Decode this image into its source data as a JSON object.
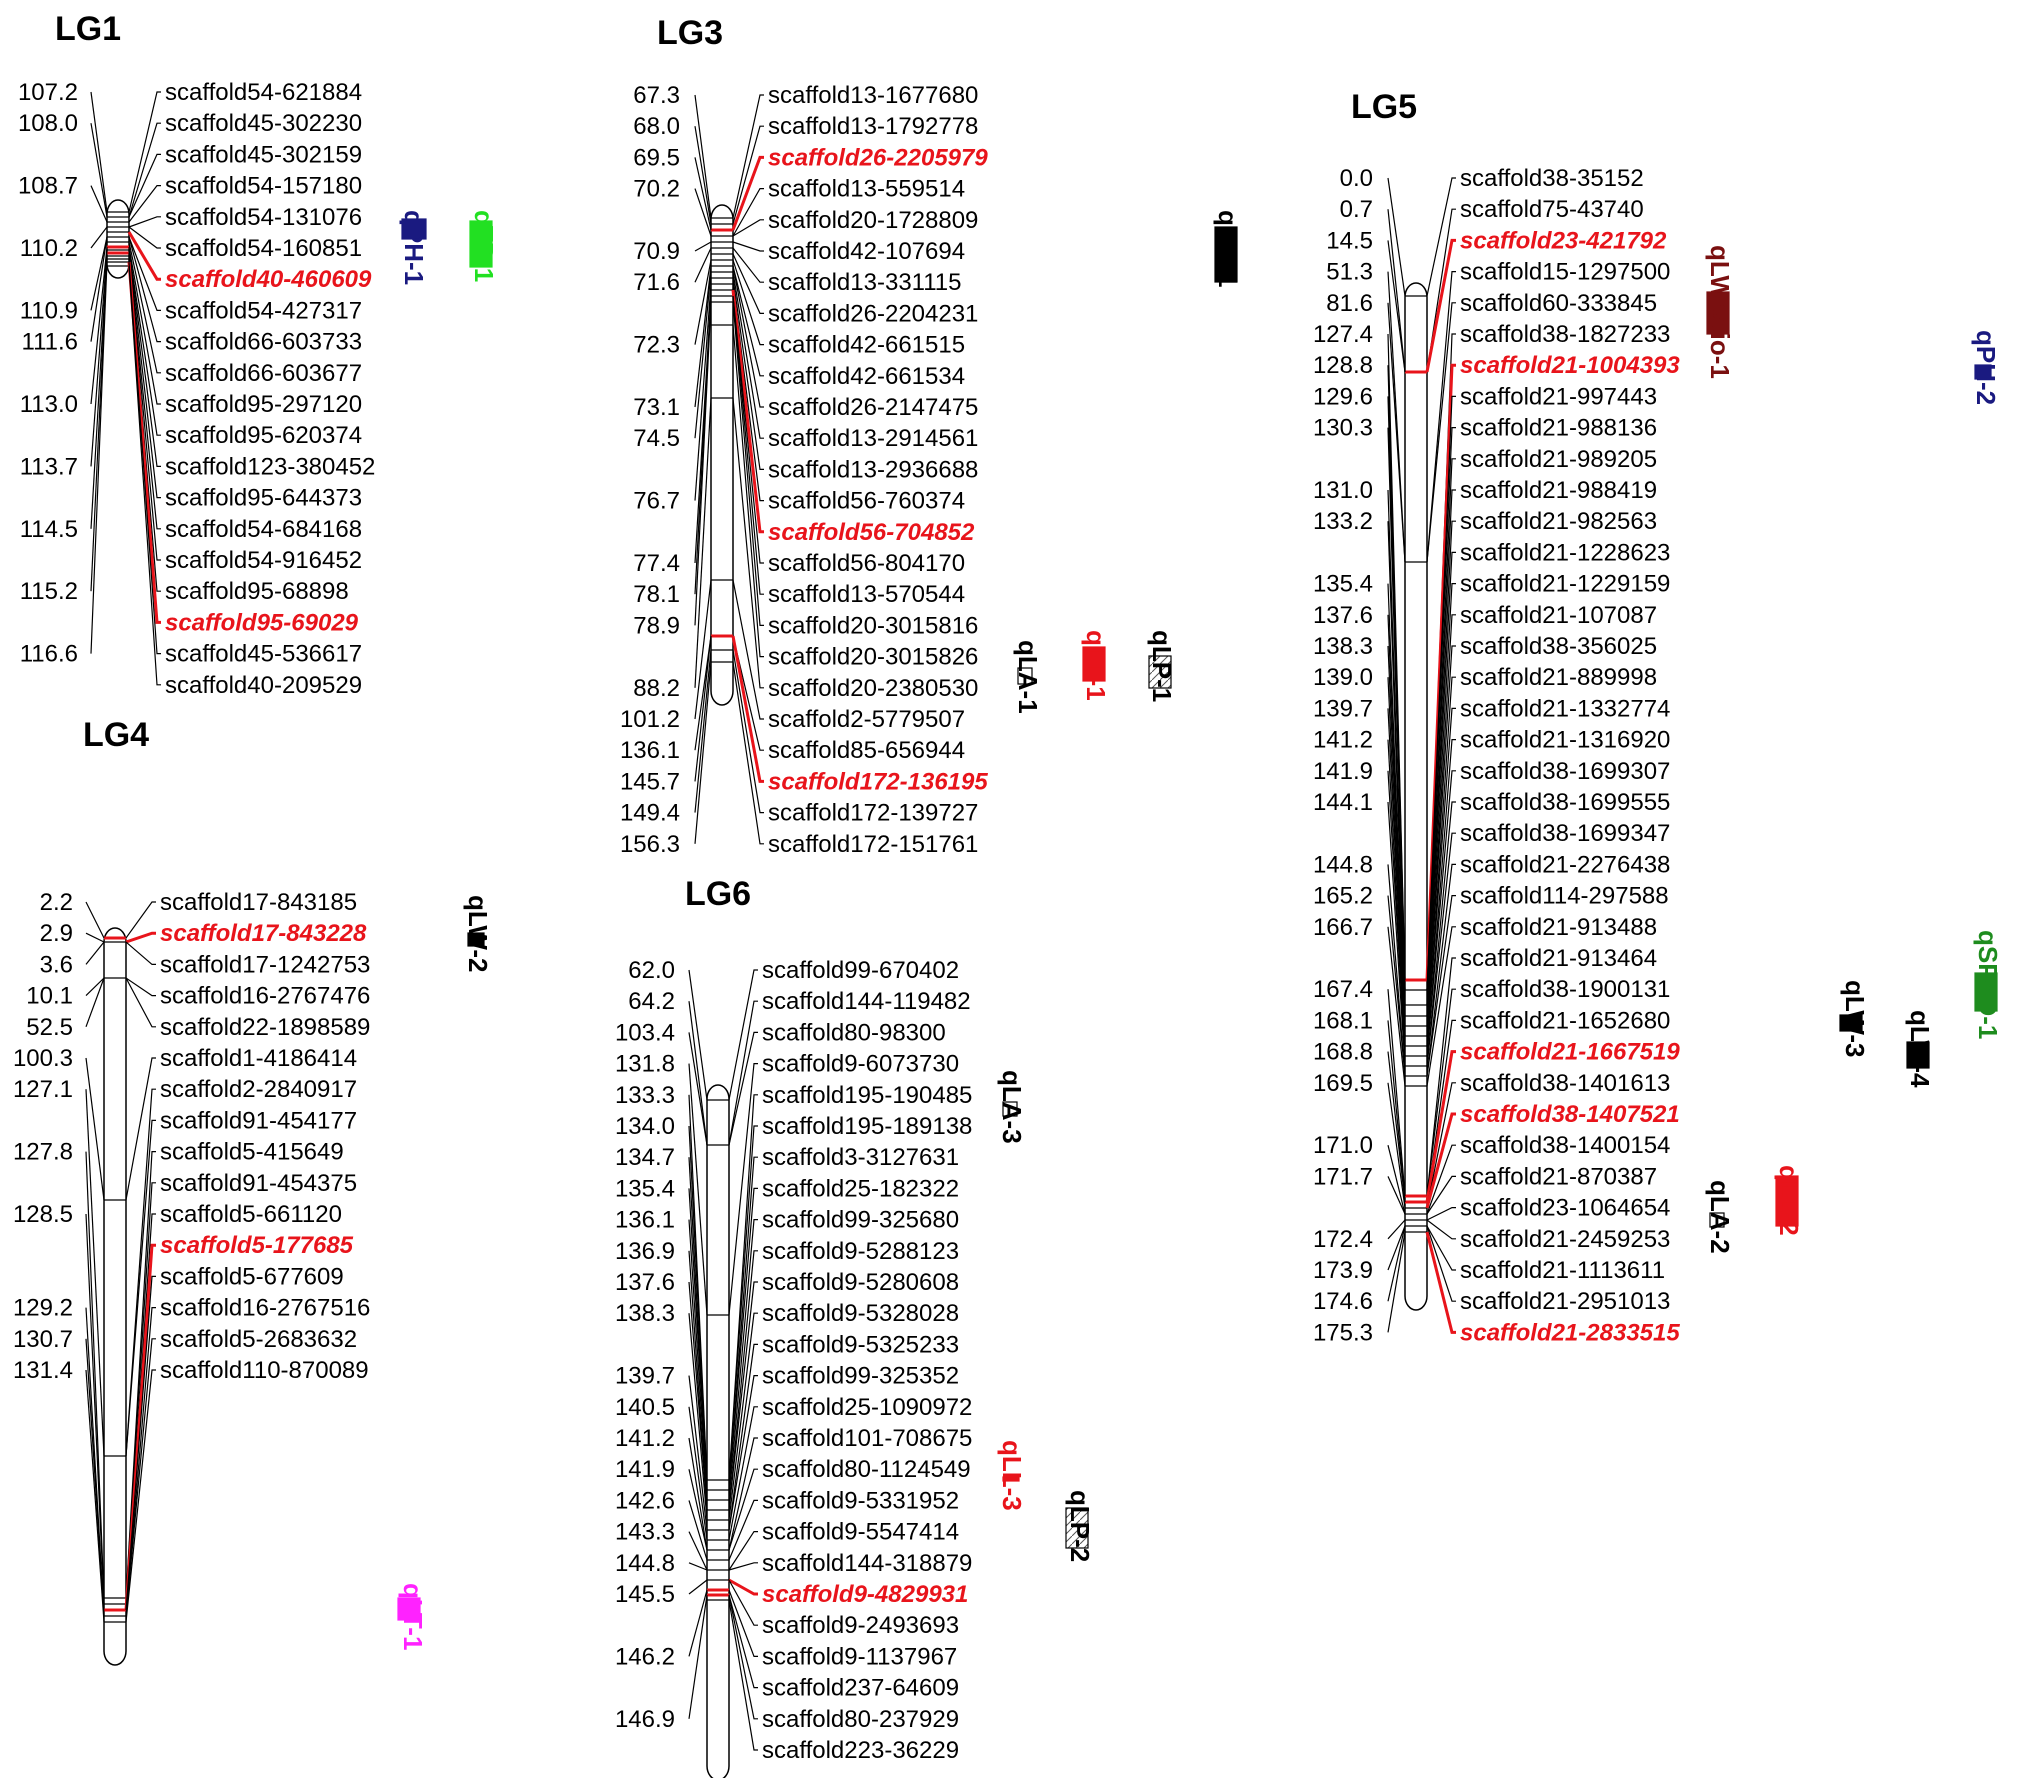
{
  "colors": {
    "highlight": "#e8141b",
    "qPH": "#1a1a80",
    "qTP": "#22e022",
    "qLWratio": "#7a1010",
    "qSPAD": "#1e8c1e",
    "qLT": "#ff22ff",
    "black": "#000000"
  },
  "linkage_groups": [
    {
      "name": "LG1",
      "markers": [
        {
          "pos": "107.2",
          "name": "scaffold54-621884"
        },
        {
          "pos": "108.0",
          "name": "scaffold45-302230"
        },
        {
          "pos": "",
          "name": "scaffold45-302159"
        },
        {
          "pos": "108.7",
          "name": "scaffold54-157180"
        },
        {
          "pos": "",
          "name": "scaffold54-131076"
        },
        {
          "pos": "110.2",
          "name": "scaffold54-160851"
        },
        {
          "pos": "",
          "name": "scaffold40-460609",
          "highlight": true
        },
        {
          "pos": "110.9",
          "name": "scaffold54-427317"
        },
        {
          "pos": "111.6",
          "name": "scaffold66-603733"
        },
        {
          "pos": "",
          "name": "scaffold66-603677"
        },
        {
          "pos": "113.0",
          "name": "scaffold95-297120"
        },
        {
          "pos": "",
          "name": "scaffold95-620374"
        },
        {
          "pos": "113.7",
          "name": "scaffold123-380452"
        },
        {
          "pos": "",
          "name": "scaffold95-644373"
        },
        {
          "pos": "114.5",
          "name": "scaffold54-684168"
        },
        {
          "pos": "",
          "name": "scaffold54-916452"
        },
        {
          "pos": "115.2",
          "name": "scaffold95-68898"
        },
        {
          "pos": "",
          "name": "scaffold95-69029",
          "highlight": true
        },
        {
          "pos": "116.6",
          "name": "scaffold45-536617"
        },
        {
          "pos": "",
          "name": "scaffold40-209529"
        }
      ],
      "qtls": [
        {
          "label": "qPH-1",
          "color_key": "qPH",
          "style": "filled"
        },
        {
          "label": "qTP-1",
          "color_key": "qTP",
          "style": "filled"
        }
      ]
    },
    {
      "name": "LG3",
      "markers": [
        {
          "pos": "67.3",
          "name": "scaffold13-1677680"
        },
        {
          "pos": "68.0",
          "name": "scaffold13-1792778"
        },
        {
          "pos": "69.5",
          "name": "scaffold26-2205979",
          "highlight": true
        },
        {
          "pos": "70.2",
          "name": "scaffold13-559514"
        },
        {
          "pos": "",
          "name": "scaffold20-1728809"
        },
        {
          "pos": "70.9",
          "name": "scaffold42-107694"
        },
        {
          "pos": "71.6",
          "name": "scaffold13-331115"
        },
        {
          "pos": "",
          "name": "scaffold26-2204231"
        },
        {
          "pos": "72.3",
          "name": "scaffold42-661515"
        },
        {
          "pos": "",
          "name": "scaffold42-661534"
        },
        {
          "pos": "73.1",
          "name": "scaffold26-2147475"
        },
        {
          "pos": "74.5",
          "name": "scaffold13-2914561"
        },
        {
          "pos": "",
          "name": "scaffold13-2936688"
        },
        {
          "pos": "76.7",
          "name": "scaffold56-760374"
        },
        {
          "pos": "",
          "name": "scaffold56-704852",
          "highlight": true
        },
        {
          "pos": "77.4",
          "name": "scaffold56-804170"
        },
        {
          "pos": "78.1",
          "name": "scaffold13-570544"
        },
        {
          "pos": "78.9",
          "name": "scaffold20-3015816"
        },
        {
          "pos": "",
          "name": "scaffold20-3015826"
        },
        {
          "pos": "88.2",
          "name": "scaffold20-2380530"
        },
        {
          "pos": "101.2",
          "name": "scaffold2-5779507"
        },
        {
          "pos": "136.1",
          "name": "scaffold85-656944"
        },
        {
          "pos": "145.7",
          "name": "scaffold172-136195",
          "highlight": true
        },
        {
          "pos": "149.4",
          "name": "scaffold172-139727"
        },
        {
          "pos": "156.3",
          "name": "scaffold172-151761"
        }
      ],
      "qtls": [
        {
          "label": "qLW-1",
          "color_key": "black",
          "style": "filled"
        },
        {
          "label": "qLA-1",
          "color_key": "black",
          "style": "open"
        },
        {
          "label": "qLL-1",
          "color_key": "highlight",
          "style": "filled"
        },
        {
          "label": "qLP-1",
          "color_key": "black",
          "style": "hatched"
        }
      ]
    },
    {
      "name": "LG5",
      "markers": [
        {
          "pos": "0.0",
          "name": "scaffold38-35152"
        },
        {
          "pos": "0.7",
          "name": "scaffold75-43740"
        },
        {
          "pos": "14.5",
          "name": "scaffold23-421792",
          "highlight": true
        },
        {
          "pos": "51.3",
          "name": "scaffold15-1297500"
        },
        {
          "pos": "81.6",
          "name": "scaffold60-333845"
        },
        {
          "pos": "127.4",
          "name": "scaffold38-1827233"
        },
        {
          "pos": "128.8",
          "name": "scaffold21-1004393",
          "highlight": true
        },
        {
          "pos": "129.6",
          "name": "scaffold21-997443"
        },
        {
          "pos": "130.3",
          "name": "scaffold21-988136"
        },
        {
          "pos": "",
          "name": "scaffold21-989205"
        },
        {
          "pos": "131.0",
          "name": "scaffold21-988419"
        },
        {
          "pos": "133.2",
          "name": "scaffold21-982563"
        },
        {
          "pos": "",
          "name": "scaffold21-1228623"
        },
        {
          "pos": "135.4",
          "name": "scaffold21-1229159"
        },
        {
          "pos": "137.6",
          "name": "scaffold21-107087"
        },
        {
          "pos": "138.3",
          "name": "scaffold38-356025"
        },
        {
          "pos": "139.0",
          "name": "scaffold21-889998"
        },
        {
          "pos": "139.7",
          "name": "scaffold21-1332774"
        },
        {
          "pos": "141.2",
          "name": "scaffold21-1316920"
        },
        {
          "pos": "141.9",
          "name": "scaffold38-1699307"
        },
        {
          "pos": "144.1",
          "name": "scaffold38-1699555"
        },
        {
          "pos": "",
          "name": "scaffold38-1699347"
        },
        {
          "pos": "144.8",
          "name": "scaffold21-2276438"
        },
        {
          "pos": "165.2",
          "name": "scaffold114-297588"
        },
        {
          "pos": "166.7",
          "name": "scaffold21-913488"
        },
        {
          "pos": "",
          "name": "scaffold21-913464"
        },
        {
          "pos": "167.4",
          "name": "scaffold38-1900131"
        },
        {
          "pos": "168.1",
          "name": "scaffold21-1652680"
        },
        {
          "pos": "168.8",
          "name": "scaffold21-1667519",
          "highlight": true
        },
        {
          "pos": "169.5",
          "name": "scaffold38-1401613"
        },
        {
          "pos": "",
          "name": "scaffold38-1407521",
          "highlight": true
        },
        {
          "pos": "171.0",
          "name": "scaffold38-1400154"
        },
        {
          "pos": "171.7",
          "name": "scaffold21-870387"
        },
        {
          "pos": "",
          "name": "scaffold23-1064654"
        },
        {
          "pos": "172.4",
          "name": "scaffold21-2459253"
        },
        {
          "pos": "173.9",
          "name": "scaffold21-1113611"
        },
        {
          "pos": "174.6",
          "name": "scaffold21-2951013"
        },
        {
          "pos": "175.3",
          "name": "scaffold21-2833515",
          "highlight": true
        }
      ],
      "qtls": [
        {
          "label": "qLWratio-1",
          "color_key": "qLWratio",
          "style": "filled"
        },
        {
          "label": "qPH-2",
          "color_key": "qPH",
          "style": "filled"
        },
        {
          "label": "qSPAD-1",
          "color_key": "qSPAD",
          "style": "filled"
        },
        {
          "label": "qLW-3",
          "color_key": "black",
          "style": "filled"
        },
        {
          "label": "qLW-4",
          "color_key": "black",
          "style": "filled"
        },
        {
          "label": "qLL-2",
          "color_key": "highlight",
          "style": "filled"
        },
        {
          "label": "qLA-2",
          "color_key": "black",
          "style": "open"
        }
      ]
    },
    {
      "name": "LG4",
      "markers": [
        {
          "pos": "2.2",
          "name": "scaffold17-843185"
        },
        {
          "pos": "2.9",
          "name": "scaffold17-843228",
          "highlight": true
        },
        {
          "pos": "3.6",
          "name": "scaffold17-1242753"
        },
        {
          "pos": "10.1",
          "name": "scaffold16-2767476"
        },
        {
          "pos": "52.5",
          "name": "scaffold22-1898589"
        },
        {
          "pos": "100.3",
          "name": "scaffold1-4186414"
        },
        {
          "pos": "127.1",
          "name": "scaffold2-2840917"
        },
        {
          "pos": "",
          "name": "scaffold91-454177"
        },
        {
          "pos": "127.8",
          "name": "scaffold5-415649"
        },
        {
          "pos": "",
          "name": "scaffold91-454375"
        },
        {
          "pos": "128.5",
          "name": "scaffold5-661120"
        },
        {
          "pos": "",
          "name": "scaffold5-177685",
          "highlight": true
        },
        {
          "pos": "",
          "name": "scaffold5-677609"
        },
        {
          "pos": "129.2",
          "name": "scaffold16-2767516"
        },
        {
          "pos": "130.7",
          "name": "scaffold5-2683632"
        },
        {
          "pos": "131.4",
          "name": "scaffold110-870089"
        }
      ],
      "qtls": [
        {
          "label": "qLW-2",
          "color_key": "black",
          "style": "filled"
        },
        {
          "label": "qLT-1",
          "color_key": "qLT",
          "style": "filled"
        }
      ]
    },
    {
      "name": "LG6",
      "markers": [
        {
          "pos": "62.0",
          "name": "scaffold99-670402"
        },
        {
          "pos": "64.2",
          "name": "scaffold144-119482"
        },
        {
          "pos": "103.4",
          "name": "scaffold80-98300"
        },
        {
          "pos": "131.8",
          "name": "scaffold9-6073730"
        },
        {
          "pos": "133.3",
          "name": "scaffold195-190485"
        },
        {
          "pos": "134.0",
          "name": "scaffold195-189138"
        },
        {
          "pos": "134.7",
          "name": "scaffold3-3127631"
        },
        {
          "pos": "135.4",
          "name": "scaffold25-182322"
        },
        {
          "pos": "136.1",
          "name": "scaffold99-325680"
        },
        {
          "pos": "136.9",
          "name": "scaffold9-5288123"
        },
        {
          "pos": "137.6",
          "name": "scaffold9-5280608"
        },
        {
          "pos": "138.3",
          "name": "scaffold9-5328028"
        },
        {
          "pos": "",
          "name": "scaffold9-5325233"
        },
        {
          "pos": "139.7",
          "name": "scaffold99-325352"
        },
        {
          "pos": "140.5",
          "name": "scaffold25-1090972"
        },
        {
          "pos": "141.2",
          "name": "scaffold101-708675"
        },
        {
          "pos": "141.9",
          "name": "scaffold80-1124549"
        },
        {
          "pos": "142.6",
          "name": "scaffold9-5331952"
        },
        {
          "pos": "143.3",
          "name": "scaffold9-5547414"
        },
        {
          "pos": "144.8",
          "name": "scaffold144-318879"
        },
        {
          "pos": "145.5",
          "name": "scaffold9-4829931",
          "highlight": true
        },
        {
          "pos": "",
          "name": "scaffold9-2493693"
        },
        {
          "pos": "146.2",
          "name": "scaffold9-1137967"
        },
        {
          "pos": "",
          "name": "scaffold237-64609"
        },
        {
          "pos": "146.9",
          "name": "scaffold80-237929"
        },
        {
          "pos": "",
          "name": "scaffold223-36229"
        }
      ],
      "qtls": [
        {
          "label": "qLA-3",
          "color_key": "black",
          "style": "open"
        },
        {
          "label": "qLL-3",
          "color_key": "highlight",
          "style": "filled"
        },
        {
          "label": "qLP-2",
          "color_key": "black",
          "style": "hatched"
        }
      ]
    }
  ]
}
